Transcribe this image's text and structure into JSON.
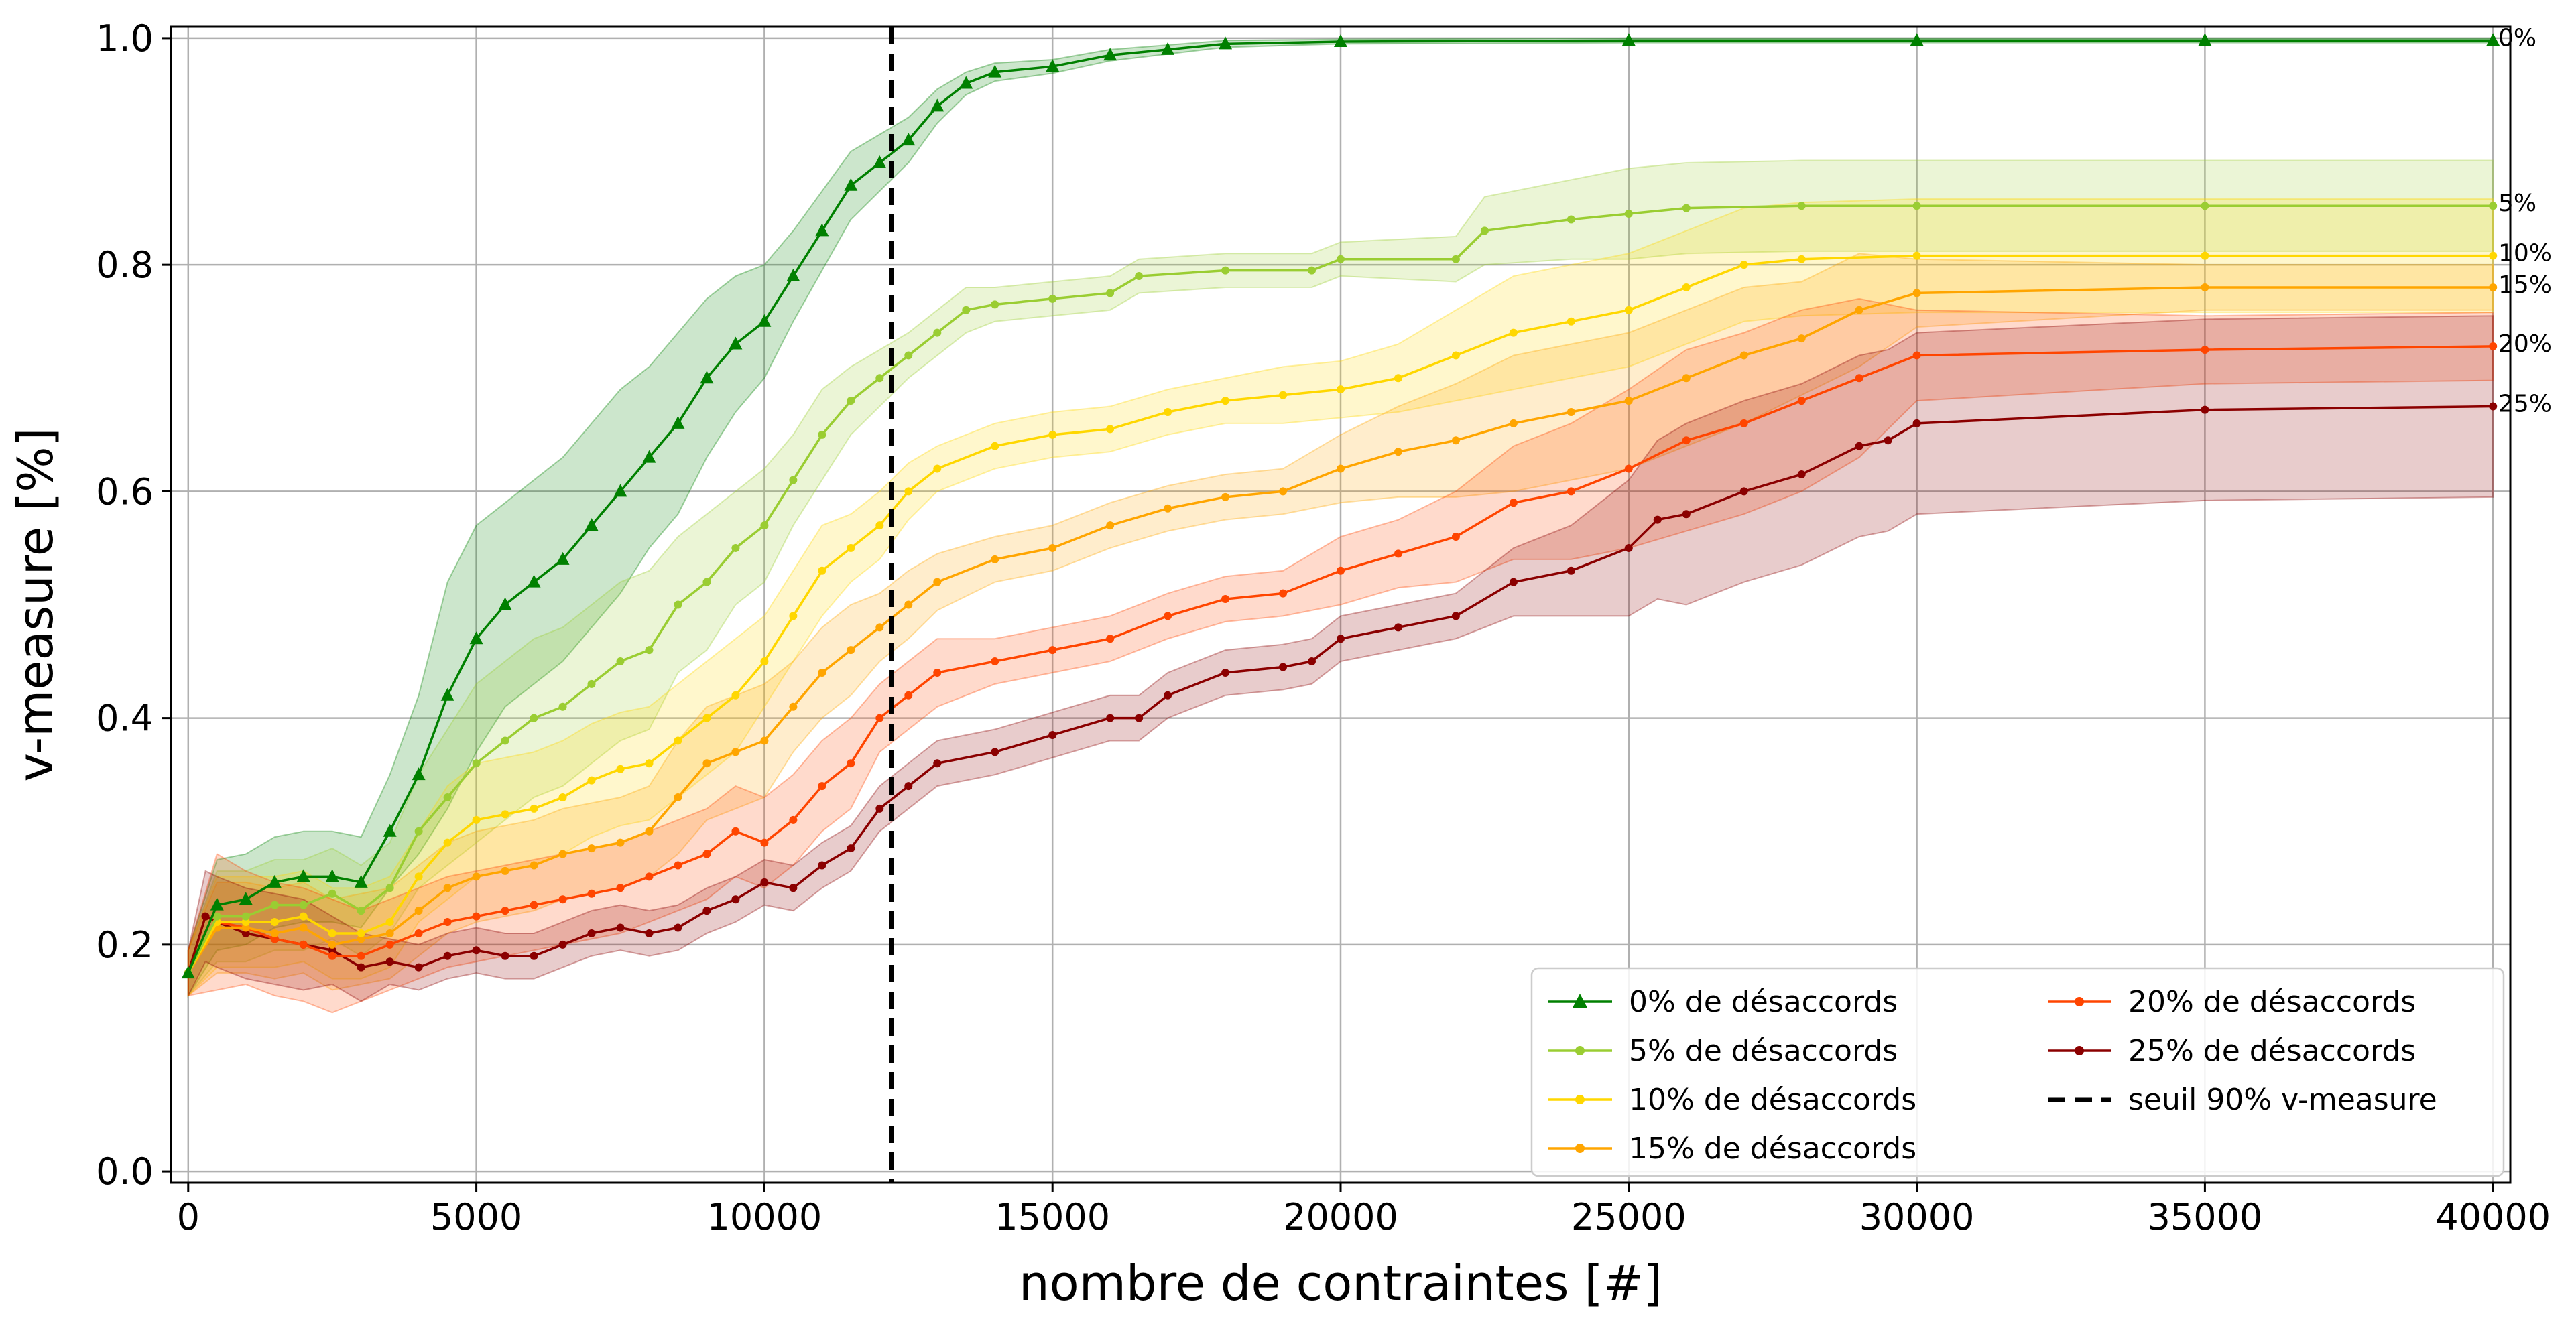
{
  "chart_data": {
    "type": "line",
    "title": "",
    "xlabel": "nombre de contraintes [#]",
    "ylabel": "v-measure [%]",
    "xlim": [
      -300,
      40300
    ],
    "ylim": [
      -0.01,
      1.01
    ],
    "xticks": [
      "0",
      "5000",
      "10000",
      "15000",
      "20000",
      "25000",
      "30000",
      "35000",
      "40000"
    ],
    "yticks": [
      "0.0",
      "0.2",
      "0.4",
      "0.6",
      "0.8",
      "1.0"
    ],
    "grid": true,
    "legend_position": "lower-right",
    "legend_columns": 2,
    "threshold": {
      "name": "seuil 90% v-measure",
      "x": 12200,
      "style": "dashed",
      "color": "#000000"
    },
    "series": [
      {
        "name": " 0% de désaccords",
        "end_label": "0%",
        "color": "#008000",
        "marker": "triangle",
        "x": [
          0,
          500,
          1000,
          1500,
          2000,
          2500,
          3000,
          3500,
          4000,
          4500,
          5000,
          5500,
          6000,
          6500,
          7000,
          7500,
          8000,
          8500,
          9000,
          9500,
          10000,
          10500,
          11000,
          11500,
          12000,
          12500,
          13000,
          13500,
          14000,
          15000,
          16000,
          17000,
          18000,
          20000,
          25000,
          30000,
          35000,
          40000
        ],
        "y": [
          0.175,
          0.235,
          0.24,
          0.255,
          0.26,
          0.26,
          0.255,
          0.3,
          0.35,
          0.42,
          0.47,
          0.5,
          0.52,
          0.54,
          0.57,
          0.6,
          0.63,
          0.66,
          0.7,
          0.73,
          0.75,
          0.79,
          0.83,
          0.87,
          0.89,
          0.91,
          0.94,
          0.96,
          0.97,
          0.975,
          0.985,
          0.99,
          0.995,
          0.997,
          0.998,
          0.998,
          0.998,
          0.998
        ],
        "band_half_width": [
          0.02,
          0.04,
          0.04,
          0.04,
          0.04,
          0.04,
          0.04,
          0.05,
          0.07,
          0.1,
          0.1,
          0.09,
          0.09,
          0.09,
          0.09,
          0.09,
          0.08,
          0.08,
          0.07,
          0.06,
          0.05,
          0.04,
          0.035,
          0.03,
          0.025,
          0.02,
          0.015,
          0.01,
          0.008,
          0.006,
          0.005,
          0.004,
          0.003,
          0.002,
          0.002,
          0.002,
          0.002,
          0.002
        ]
      },
      {
        "name": " 5% de désaccords",
        "end_label": "5%",
        "color": "#9acd32",
        "marker": "dot",
        "x": [
          0,
          500,
          1000,
          1500,
          2000,
          2500,
          3000,
          3500,
          4000,
          4500,
          5000,
          5500,
          6000,
          6500,
          7000,
          7500,
          8000,
          8500,
          9000,
          9500,
          10000,
          10500,
          11000,
          11500,
          12000,
          12500,
          13000,
          13500,
          14000,
          15000,
          16000,
          16500,
          18000,
          19500,
          20000,
          22000,
          22500,
          24000,
          25000,
          26000,
          28000,
          30000,
          35000,
          40000
        ],
        "y": [
          0.175,
          0.225,
          0.225,
          0.235,
          0.235,
          0.245,
          0.23,
          0.25,
          0.3,
          0.33,
          0.36,
          0.38,
          0.4,
          0.41,
          0.43,
          0.45,
          0.46,
          0.5,
          0.52,
          0.55,
          0.57,
          0.61,
          0.65,
          0.68,
          0.7,
          0.72,
          0.74,
          0.76,
          0.765,
          0.77,
          0.775,
          0.79,
          0.795,
          0.795,
          0.805,
          0.805,
          0.83,
          0.84,
          0.845,
          0.85,
          0.852,
          0.852,
          0.852,
          0.852
        ],
        "band_half_width": [
          0.02,
          0.04,
          0.04,
          0.04,
          0.04,
          0.04,
          0.04,
          0.04,
          0.05,
          0.06,
          0.07,
          0.07,
          0.07,
          0.07,
          0.07,
          0.07,
          0.07,
          0.06,
          0.06,
          0.05,
          0.05,
          0.04,
          0.04,
          0.03,
          0.025,
          0.02,
          0.02,
          0.02,
          0.015,
          0.015,
          0.015,
          0.015,
          0.015,
          0.015,
          0.015,
          0.02,
          0.03,
          0.035,
          0.04,
          0.04,
          0.04,
          0.04,
          0.04,
          0.04
        ]
      },
      {
        "name": "10% de désaccords",
        "end_label": "10%",
        "color": "#ffd700",
        "marker": "dot",
        "x": [
          0,
          500,
          1000,
          1500,
          2000,
          2500,
          3000,
          3500,
          4000,
          4500,
          5000,
          5500,
          6000,
          6500,
          7000,
          7500,
          8000,
          8500,
          9000,
          9500,
          10000,
          10500,
          11000,
          11500,
          12000,
          12500,
          13000,
          14000,
          15000,
          16000,
          17000,
          18000,
          19000,
          20000,
          21000,
          22000,
          23000,
          24000,
          25000,
          26000,
          27000,
          28000,
          30000,
          35000,
          40000
        ],
        "y": [
          0.175,
          0.22,
          0.22,
          0.22,
          0.225,
          0.21,
          0.21,
          0.22,
          0.26,
          0.29,
          0.31,
          0.315,
          0.32,
          0.33,
          0.345,
          0.355,
          0.36,
          0.38,
          0.4,
          0.42,
          0.45,
          0.49,
          0.53,
          0.55,
          0.57,
          0.6,
          0.62,
          0.64,
          0.65,
          0.655,
          0.67,
          0.68,
          0.685,
          0.69,
          0.7,
          0.72,
          0.74,
          0.75,
          0.76,
          0.78,
          0.8,
          0.805,
          0.808,
          0.808,
          0.808
        ],
        "band_half_width": [
          0.02,
          0.04,
          0.04,
          0.04,
          0.04,
          0.04,
          0.04,
          0.04,
          0.04,
          0.05,
          0.05,
          0.05,
          0.05,
          0.05,
          0.05,
          0.05,
          0.05,
          0.05,
          0.05,
          0.05,
          0.04,
          0.04,
          0.04,
          0.03,
          0.03,
          0.025,
          0.02,
          0.02,
          0.02,
          0.02,
          0.02,
          0.02,
          0.025,
          0.025,
          0.03,
          0.04,
          0.05,
          0.05,
          0.05,
          0.05,
          0.05,
          0.05,
          0.05,
          0.05,
          0.05
        ]
      },
      {
        "name": "15% de désaccords",
        "end_label": "15%",
        "color": "#ffa500",
        "marker": "dot",
        "x": [
          0,
          500,
          1000,
          1500,
          2000,
          2500,
          3000,
          3500,
          4000,
          4500,
          5000,
          5500,
          6000,
          6500,
          7000,
          7500,
          8000,
          8500,
          9000,
          9500,
          10000,
          10500,
          11000,
          11500,
          12000,
          12500,
          13000,
          14000,
          15000,
          16000,
          17000,
          18000,
          19000,
          20000,
          21000,
          22000,
          23000,
          24000,
          25000,
          26000,
          27000,
          28000,
          29000,
          30000,
          35000,
          40000
        ],
        "y": [
          0.175,
          0.215,
          0.215,
          0.21,
          0.215,
          0.2,
          0.205,
          0.21,
          0.23,
          0.25,
          0.26,
          0.265,
          0.27,
          0.28,
          0.285,
          0.29,
          0.3,
          0.33,
          0.36,
          0.37,
          0.38,
          0.41,
          0.44,
          0.46,
          0.48,
          0.5,
          0.52,
          0.54,
          0.55,
          0.57,
          0.585,
          0.595,
          0.6,
          0.62,
          0.635,
          0.645,
          0.66,
          0.67,
          0.68,
          0.7,
          0.72,
          0.735,
          0.76,
          0.775,
          0.78,
          0.78
        ],
        "band_half_width": [
          0.02,
          0.04,
          0.04,
          0.04,
          0.04,
          0.04,
          0.04,
          0.04,
          0.04,
          0.04,
          0.04,
          0.04,
          0.04,
          0.04,
          0.04,
          0.04,
          0.04,
          0.05,
          0.05,
          0.05,
          0.05,
          0.04,
          0.04,
          0.04,
          0.03,
          0.03,
          0.025,
          0.02,
          0.02,
          0.02,
          0.02,
          0.02,
          0.02,
          0.03,
          0.04,
          0.05,
          0.06,
          0.06,
          0.06,
          0.06,
          0.06,
          0.05,
          0.05,
          0.03,
          0.02,
          0.02
        ]
      },
      {
        "name": "20% de désaccords",
        "end_label": "20%",
        "color": "#ff4500",
        "marker": "dot",
        "x": [
          0,
          500,
          1000,
          1500,
          2000,
          2500,
          3000,
          3500,
          4000,
          4500,
          5000,
          5500,
          6000,
          6500,
          7000,
          7500,
          8000,
          8500,
          9000,
          9500,
          10000,
          10500,
          11000,
          11500,
          12000,
          12500,
          13000,
          14000,
          15000,
          16000,
          17000,
          18000,
          19000,
          20000,
          21000,
          22000,
          23000,
          24000,
          25000,
          26000,
          27000,
          28000,
          29000,
          30000,
          35000,
          40000
        ],
        "y": [
          0.175,
          0.22,
          0.215,
          0.205,
          0.2,
          0.19,
          0.19,
          0.2,
          0.21,
          0.22,
          0.225,
          0.23,
          0.235,
          0.24,
          0.245,
          0.25,
          0.26,
          0.27,
          0.28,
          0.3,
          0.29,
          0.31,
          0.34,
          0.36,
          0.4,
          0.42,
          0.44,
          0.45,
          0.46,
          0.47,
          0.49,
          0.505,
          0.51,
          0.53,
          0.545,
          0.56,
          0.59,
          0.6,
          0.62,
          0.645,
          0.66,
          0.68,
          0.7,
          0.72,
          0.725,
          0.728
        ],
        "band_half_width": [
          0.02,
          0.06,
          0.05,
          0.05,
          0.05,
          0.05,
          0.04,
          0.04,
          0.04,
          0.04,
          0.04,
          0.04,
          0.04,
          0.04,
          0.04,
          0.04,
          0.04,
          0.04,
          0.04,
          0.04,
          0.04,
          0.04,
          0.04,
          0.04,
          0.03,
          0.03,
          0.03,
          0.02,
          0.02,
          0.02,
          0.02,
          0.02,
          0.02,
          0.03,
          0.03,
          0.04,
          0.05,
          0.06,
          0.07,
          0.08,
          0.08,
          0.08,
          0.07,
          0.04,
          0.03,
          0.03
        ]
      },
      {
        "name": "25% de désaccords",
        "end_label": "25%",
        "color": "#8b0000",
        "marker": "dot",
        "x": [
          0,
          300,
          500,
          1000,
          1500,
          2000,
          2500,
          3000,
          3500,
          4000,
          4500,
          5000,
          5500,
          6000,
          6500,
          7000,
          7500,
          8000,
          8500,
          9000,
          9500,
          10000,
          10500,
          11000,
          11500,
          12000,
          12500,
          13000,
          14000,
          15000,
          16000,
          16500,
          17000,
          18000,
          19000,
          19500,
          20000,
          21000,
          22000,
          23000,
          24000,
          25000,
          25500,
          26000,
          27000,
          28000,
          29000,
          29500,
          30000,
          35000,
          40000
        ],
        "y": [
          0.175,
          0.225,
          0.22,
          0.21,
          0.205,
          0.2,
          0.195,
          0.18,
          0.185,
          0.18,
          0.19,
          0.195,
          0.19,
          0.19,
          0.2,
          0.21,
          0.215,
          0.21,
          0.215,
          0.23,
          0.24,
          0.255,
          0.25,
          0.27,
          0.285,
          0.32,
          0.34,
          0.36,
          0.37,
          0.385,
          0.4,
          0.4,
          0.42,
          0.44,
          0.445,
          0.45,
          0.47,
          0.48,
          0.49,
          0.52,
          0.53,
          0.55,
          0.575,
          0.58,
          0.6,
          0.615,
          0.64,
          0.645,
          0.66,
          0.672,
          0.675
        ],
        "band_half_width": [
          0.02,
          0.04,
          0.04,
          0.04,
          0.04,
          0.04,
          0.03,
          0.03,
          0.02,
          0.02,
          0.02,
          0.02,
          0.02,
          0.02,
          0.02,
          0.02,
          0.02,
          0.02,
          0.02,
          0.02,
          0.02,
          0.02,
          0.02,
          0.02,
          0.02,
          0.02,
          0.02,
          0.02,
          0.02,
          0.02,
          0.02,
          0.02,
          0.02,
          0.02,
          0.02,
          0.02,
          0.02,
          0.02,
          0.02,
          0.03,
          0.04,
          0.06,
          0.07,
          0.08,
          0.08,
          0.08,
          0.08,
          0.08,
          0.08,
          0.08,
          0.08
        ]
      }
    ]
  }
}
